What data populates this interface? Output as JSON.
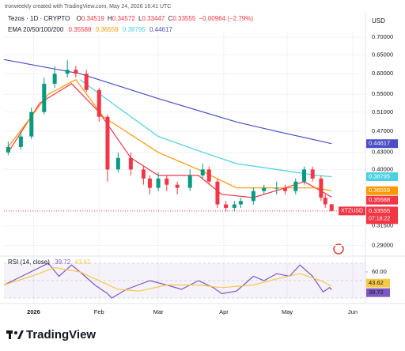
{
  "header": {
    "credit": "tronweekly created with TradingView.com, May 24, 2026 16:41 UTC",
    "symbol": "Tezos · 1D · CRYPTO",
    "ohlc_letters": [
      "O",
      "H",
      "L",
      "C"
    ],
    "change": "−0.00964 (−2.79%)",
    "change_color": "#f23645"
  },
  "chart_data": [
    {
      "type": "candlestick",
      "currency": "USD",
      "ticker": "XTZUSD",
      "countdown": "07:18:22",
      "log_scale": true,
      "up_color": "#089981",
      "down_color": "#f23645",
      "x": [
        -12,
        -6,
        -1,
        5,
        10,
        16,
        20,
        25,
        31,
        35,
        40,
        46,
        52,
        55,
        59,
        63,
        68,
        74,
        80,
        83,
        87,
        91,
        95,
        98,
        104,
        109,
        115,
        119,
        124,
        128,
        132,
        136,
        138,
        141
      ],
      "open": [
        0.43,
        0.44,
        0.46,
        0.51,
        0.575,
        0.6,
        0.61,
        0.6,
        0.56,
        0.5,
        0.4,
        0.42,
        0.4,
        0.385,
        0.37,
        0.385,
        0.375,
        0.37,
        0.39,
        0.4,
        0.38,
        0.345,
        0.34,
        0.345,
        0.35,
        0.365,
        0.37,
        0.37,
        0.365,
        0.38,
        0.4,
        0.385,
        0.355,
        0.34519
      ],
      "high": [
        0.45,
        0.47,
        0.52,
        0.59,
        0.62,
        0.635,
        0.62,
        0.61,
        0.565,
        0.505,
        0.43,
        0.43,
        0.405,
        0.39,
        0.395,
        0.39,
        0.38,
        0.4,
        0.41,
        0.405,
        0.385,
        0.35,
        0.35,
        0.355,
        0.37,
        0.375,
        0.38,
        0.375,
        0.385,
        0.405,
        0.405,
        0.39,
        0.36,
        0.34572
      ],
      "low": [
        0.425,
        0.435,
        0.455,
        0.505,
        0.565,
        0.59,
        0.59,
        0.555,
        0.49,
        0.38,
        0.395,
        0.39,
        0.375,
        0.36,
        0.365,
        0.365,
        0.36,
        0.365,
        0.385,
        0.375,
        0.34,
        0.335,
        0.335,
        0.34,
        0.345,
        0.36,
        0.36,
        0.36,
        0.36,
        0.375,
        0.38,
        0.35,
        0.34,
        0.33447
      ],
      "close": [
        0.44,
        0.46,
        0.51,
        0.575,
        0.6,
        0.61,
        0.6,
        0.56,
        0.5,
        0.4,
        0.42,
        0.4,
        0.385,
        0.37,
        0.385,
        0.375,
        0.37,
        0.39,
        0.4,
        0.38,
        0.345,
        0.34,
        0.345,
        0.35,
        0.365,
        0.37,
        0.37,
        0.365,
        0.38,
        0.4,
        0.385,
        0.355,
        0.3452,
        0.33555
      ],
      "ema_label": "EMA 20/50/100/200",
      "series": [
        {
          "color": "#f23645",
          "x": [
            -12,
            3,
            18,
            31,
            46,
            59,
            78,
            89,
            104,
            119,
            128,
            136,
            141
          ],
          "values": [
            0.43,
            0.53,
            0.575,
            0.51,
            0.42,
            0.39,
            0.39,
            0.36,
            0.355,
            0.37,
            0.38,
            0.365,
            0.35588
          ]
        },
        {
          "color": "#ff9800",
          "x": [
            -12,
            7,
            20,
            33,
            59,
            78,
            96,
            115,
            134,
            141
          ],
          "values": [
            0.44,
            0.55,
            0.585,
            0.5,
            0.43,
            0.4,
            0.37,
            0.37,
            0.37,
            0.36559
          ]
        },
        {
          "color": "#4dd0e1",
          "x": [
            22,
            40,
            59,
            78,
            96,
            115,
            134,
            141
          ],
          "values": [
            0.585,
            0.52,
            0.46,
            0.433,
            0.41,
            0.4,
            0.39,
            0.38795
          ]
        },
        {
          "color": "#4a4fc4",
          "x": [
            -14,
            22,
            59,
            96,
            115,
            141
          ],
          "values": [
            0.637,
            0.6,
            0.54,
            0.489,
            0.47,
            0.44617
          ]
        }
      ],
      "xlim": [
        -14,
        157
      ],
      "xticks": [
        {
          "value": 0,
          "label": "2026"
        },
        {
          "value": 31,
          "label": "Feb"
        },
        {
          "value": 59,
          "label": "Mar"
        },
        {
          "value": 90,
          "label": "Apr"
        },
        {
          "value": 120,
          "label": "May"
        },
        {
          "value": 151,
          "label": "Jun"
        }
      ],
      "ylim": [
        0.279,
        0.717
      ],
      "yticks": [
        {
          "value": 0.7,
          "label": "0.70000"
        },
        {
          "value": 0.65,
          "label": "0.65000"
        },
        {
          "value": 0.6,
          "label": "0.60000"
        },
        {
          "value": 0.55,
          "label": "0.55000"
        },
        {
          "value": 0.51,
          "label": "0.51000"
        },
        {
          "value": 0.47,
          "label": "0.47000"
        },
        {
          "value": 0.43,
          "label": "0.43000"
        },
        {
          "value": 0.4,
          "label": "0.40000"
        },
        {
          "value": 0.315,
          "label": "0.31500"
        },
        {
          "value": 0.29,
          "label": "0.29000"
        }
      ]
    },
    {
      "type": "line",
      "title": "RSI (14, close)",
      "series": [
        {
          "color": "#7e57c2",
          "x": [
            -14,
            7,
            12,
            18,
            22,
            29,
            35,
            37,
            44,
            55,
            63,
            70,
            78,
            85,
            89,
            96,
            104,
            109,
            115,
            121,
            126,
            132,
            137,
            140,
            141
          ],
          "values": [
            45,
            70,
            55,
            68,
            60,
            45,
            35,
            30,
            40,
            50,
            45,
            40,
            50,
            42,
            35,
            38,
            55,
            50,
            58,
            55,
            68,
            55,
            37,
            42,
            39.72
          ]
        },
        {
          "color": "#f7c948",
          "x": [
            -14,
            -1,
            10,
            22,
            31,
            40,
            50,
            63,
            78,
            89,
            104,
            115,
            126,
            136,
            141
          ],
          "values": [
            45,
            55,
            65,
            60,
            50,
            40,
            38,
            45,
            45,
            42,
            45,
            52,
            58,
            50,
            43.62
          ]
        }
      ],
      "levels": [
        70,
        50,
        30
      ],
      "xlim": [
        -14,
        157
      ],
      "ylim": [
        25,
        75
      ],
      "yticks": [
        {
          "value": 60,
          "label": "60.00"
        }
      ]
    }
  ],
  "footer": {
    "brand": "TradingView"
  }
}
